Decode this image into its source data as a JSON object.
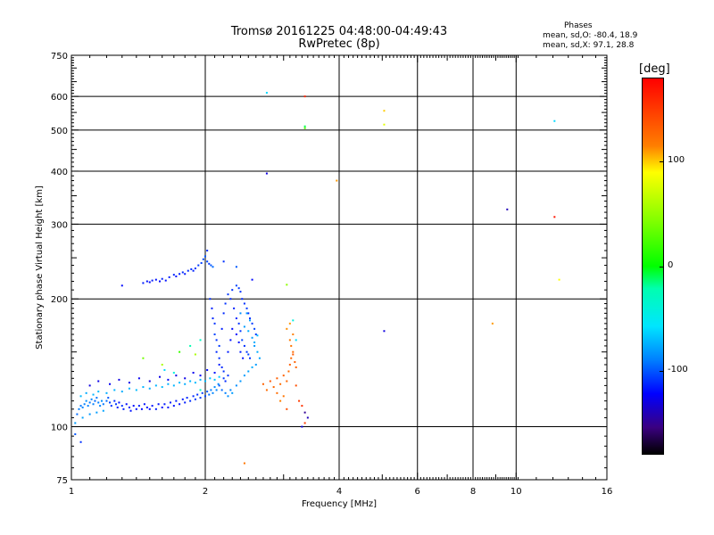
{
  "chart_data": {
    "type": "scatter",
    "title": "Tromsø 20161225 04:48:00-04:49:43",
    "subtitle": "RwPretec (8p)",
    "phases": {
      "title": "Phases",
      "o_line": "mean, sd,O: -80.4, 18.9",
      "x_line": "mean, sd,X:  97.1, 28.8"
    },
    "xlabel": "Frequency [MHz]",
    "ylabel": "Stationary phase Virtual Height [km]",
    "x_scale": "log",
    "y_scale": "log",
    "xlim": [
      1,
      16
    ],
    "ylim": [
      75,
      750
    ],
    "x_ticks": [
      {
        "value": 1,
        "label": "1"
      },
      {
        "value": 2,
        "label": "2"
      },
      {
        "value": 4,
        "label": "4"
      },
      {
        "value": 6,
        "label": "6"
      },
      {
        "value": 8,
        "label": "8"
      },
      {
        "value": 10,
        "label": "10"
      },
      {
        "value": 16,
        "label": "16"
      }
    ],
    "y_ticks": [
      {
        "value": 75,
        "label": "75"
      },
      {
        "value": 100,
        "label": "100"
      },
      {
        "value": 200,
        "label": "200"
      },
      {
        "value": 300,
        "label": "300"
      },
      {
        "value": 400,
        "label": "400"
      },
      {
        "value": 500,
        "label": "500"
      },
      {
        "value": 600,
        "label": "600"
      },
      {
        "value": 750,
        "label": "750"
      }
    ],
    "grid": true,
    "colorbar": {
      "label": "[deg]",
      "range": [
        -180,
        180
      ],
      "ticks": [
        {
          "value": 100,
          "label": "100"
        },
        {
          "value": 0,
          "label": "0"
        },
        {
          "value": -100,
          "label": "-100"
        }
      ]
    },
    "points": [
      [
        1.03,
        107,
        -95
      ],
      [
        1.04,
        110,
        -90
      ],
      [
        1.05,
        112,
        -92
      ],
      [
        1.06,
        111,
        -88
      ],
      [
        1.07,
        113,
        -90
      ],
      [
        1.08,
        115,
        -85
      ],
      [
        1.09,
        112,
        -90
      ],
      [
        1.1,
        114,
        -92
      ],
      [
        1.11,
        116,
        -88
      ],
      [
        1.12,
        113,
        -90
      ],
      [
        1.13,
        115,
        -95
      ],
      [
        1.14,
        117,
        -92
      ],
      [
        1.15,
        114,
        -90
      ],
      [
        1.16,
        112,
        -88
      ],
      [
        1.17,
        115,
        -85
      ],
      [
        1.18,
        113,
        -92
      ],
      [
        1.2,
        115,
        -95
      ],
      [
        1.21,
        117,
        -100
      ],
      [
        1.22,
        114,
        -105
      ],
      [
        1.23,
        112,
        -110
      ],
      [
        1.25,
        115,
        -112
      ],
      [
        1.26,
        113,
        -108
      ],
      [
        1.27,
        111,
        -115
      ],
      [
        1.28,
        114,
        -118
      ],
      [
        1.3,
        112,
        -110
      ],
      [
        1.31,
        110,
        -115
      ],
      [
        1.33,
        113,
        -120
      ],
      [
        1.35,
        111,
        -115
      ],
      [
        1.36,
        109,
        -118
      ],
      [
        1.38,
        112,
        -120
      ],
      [
        1.4,
        110,
        -118
      ],
      [
        1.42,
        112,
        -115
      ],
      [
        1.44,
        110,
        -120
      ],
      [
        1.46,
        113,
        -118
      ],
      [
        1.48,
        111,
        -116
      ],
      [
        1.5,
        110,
        -120
      ],
      [
        1.52,
        112,
        -118
      ],
      [
        1.55,
        110,
        -115
      ],
      [
        1.57,
        113,
        -118
      ],
      [
        1.6,
        111,
        -120
      ],
      [
        1.62,
        113,
        -116
      ],
      [
        1.65,
        111,
        -118
      ],
      [
        1.67,
        114,
        -115
      ],
      [
        1.7,
        112,
        -118
      ],
      [
        1.72,
        115,
        -115
      ],
      [
        1.75,
        113,
        -118
      ],
      [
        1.78,
        116,
        -116
      ],
      [
        1.8,
        114,
        -115
      ],
      [
        1.82,
        117,
        -112
      ],
      [
        1.85,
        115,
        -110
      ],
      [
        1.88,
        118,
        -112
      ],
      [
        1.9,
        116,
        -108
      ],
      [
        1.92,
        119,
        -110
      ],
      [
        1.95,
        117,
        -108
      ],
      [
        1.97,
        120,
        -106
      ],
      [
        2.0,
        118,
        -104
      ],
      [
        2.02,
        121,
        -100
      ],
      [
        2.04,
        119,
        -95
      ],
      [
        2.06,
        122,
        -90
      ],
      [
        2.08,
        120,
        -88
      ],
      [
        2.1,
        124,
        -85
      ],
      [
        2.12,
        122,
        -88
      ],
      [
        2.14,
        126,
        -85
      ],
      [
        1.05,
        118,
        -70
      ],
      [
        1.08,
        120,
        -75
      ],
      [
        1.12,
        119,
        -72
      ],
      [
        1.15,
        121,
        -70
      ],
      [
        1.2,
        120,
        -74
      ],
      [
        1.25,
        122,
        -72
      ],
      [
        1.3,
        121,
        -75
      ],
      [
        1.35,
        123,
        -73
      ],
      [
        1.4,
        122,
        -70
      ],
      [
        1.45,
        124,
        -72
      ],
      [
        1.5,
        123,
        -75
      ],
      [
        1.55,
        125,
        -72
      ],
      [
        1.6,
        124,
        -70
      ],
      [
        1.65,
        126,
        -74
      ],
      [
        1.7,
        125,
        -72
      ],
      [
        1.75,
        127,
        -70
      ],
      [
        1.8,
        126,
        -75
      ],
      [
        1.85,
        128,
        -72
      ],
      [
        1.9,
        127,
        -70
      ],
      [
        1.95,
        129,
        -72
      ],
      [
        2.0,
        128,
        -70
      ],
      [
        2.05,
        130,
        -68
      ],
      [
        2.1,
        129,
        -66
      ],
      [
        2.15,
        131,
        -65
      ],
      [
        1.1,
        125,
        -130
      ],
      [
        1.15,
        128,
        -128
      ],
      [
        1.22,
        126,
        -125
      ],
      [
        1.28,
        129,
        -130
      ],
      [
        1.35,
        127,
        -128
      ],
      [
        1.42,
        130,
        -125
      ],
      [
        1.5,
        128,
        -130
      ],
      [
        1.58,
        131,
        -128
      ],
      [
        1.65,
        129,
        -125
      ],
      [
        1.72,
        132,
        -130
      ],
      [
        1.8,
        130,
        -128
      ],
      [
        1.88,
        134,
        -126
      ],
      [
        1.95,
        132,
        -124
      ],
      [
        2.02,
        136,
        -120
      ],
      [
        2.1,
        134,
        -118
      ],
      [
        1.02,
        102,
        -80
      ],
      [
        1.06,
        105,
        -78
      ],
      [
        1.1,
        107,
        -82
      ],
      [
        1.14,
        108,
        -80
      ],
      [
        1.18,
        109,
        -78
      ],
      [
        1.45,
        145,
        40
      ],
      [
        1.6,
        140,
        60
      ],
      [
        1.75,
        150,
        20
      ],
      [
        1.85,
        155,
        -20
      ],
      [
        1.9,
        148,
        60
      ],
      [
        1.95,
        160,
        -30
      ],
      [
        1.7,
        134,
        -40
      ],
      [
        1.62,
        136,
        -60
      ],
      [
        1.3,
        215,
        -120
      ],
      [
        1.45,
        218,
        -115
      ],
      [
        1.48,
        220,
        -118
      ],
      [
        1.5,
        219,
        -120
      ],
      [
        1.52,
        221,
        -116
      ],
      [
        1.55,
        222,
        -118
      ],
      [
        1.58,
        220,
        -120
      ],
      [
        1.6,
        223,
        -115
      ],
      [
        1.63,
        221,
        -118
      ],
      [
        1.66,
        225,
        -116
      ],
      [
        1.7,
        228,
        -114
      ],
      [
        1.72,
        226,
        -118
      ],
      [
        1.75,
        229,
        -115
      ],
      [
        1.78,
        231,
        -112
      ],
      [
        1.8,
        229,
        -116
      ],
      [
        1.83,
        233,
        -112
      ],
      [
        1.86,
        235,
        -110
      ],
      [
        1.88,
        233,
        -114
      ],
      [
        1.9,
        236,
        -110
      ],
      [
        1.93,
        240,
        -108
      ],
      [
        1.96,
        243,
        -106
      ],
      [
        1.98,
        248,
        -104
      ],
      [
        2.0,
        252,
        -100
      ],
      [
        2.02,
        245,
        -105
      ],
      [
        2.04,
        242,
        -108
      ],
      [
        2.06,
        240,
        -100
      ],
      [
        2.08,
        238,
        -95
      ],
      [
        2.02,
        260,
        -110
      ],
      [
        2.2,
        245,
        -110
      ],
      [
        2.35,
        238,
        -100
      ],
      [
        2.55,
        222,
        -120
      ],
      [
        3.05,
        216,
        50
      ],
      [
        2.05,
        200,
        -110
      ],
      [
        2.07,
        190,
        -115
      ],
      [
        2.08,
        180,
        -112
      ],
      [
        2.1,
        175,
        -110
      ],
      [
        2.1,
        165,
        -105
      ],
      [
        2.12,
        160,
        -110
      ],
      [
        2.15,
        155,
        -108
      ],
      [
        2.12,
        150,
        -112
      ],
      [
        2.15,
        145,
        -110
      ],
      [
        2.15,
        140,
        -115
      ],
      [
        2.18,
        138,
        -112
      ],
      [
        2.2,
        135,
        -110
      ],
      [
        2.2,
        130,
        -108
      ],
      [
        2.22,
        128,
        -112
      ],
      [
        2.25,
        132,
        -110
      ],
      [
        2.18,
        170,
        -115
      ],
      [
        2.2,
        185,
        -112
      ],
      [
        2.22,
        195,
        -110
      ],
      [
        2.25,
        205,
        -108
      ],
      [
        2.28,
        200,
        -112
      ],
      [
        2.3,
        210,
        -110
      ],
      [
        2.35,
        215,
        -105
      ],
      [
        2.38,
        212,
        -108
      ],
      [
        2.4,
        208,
        -110
      ],
      [
        2.42,
        200,
        -112
      ],
      [
        2.45,
        195,
        -110
      ],
      [
        2.48,
        190,
        -108
      ],
      [
        2.5,
        185,
        -112
      ],
      [
        2.52,
        180,
        -110
      ],
      [
        2.55,
        175,
        -108
      ],
      [
        2.58,
        170,
        -105
      ],
      [
        2.6,
        165,
        -108
      ],
      [
        2.32,
        190,
        -115
      ],
      [
        2.35,
        180,
        -112
      ],
      [
        2.38,
        175,
        -110
      ],
      [
        2.4,
        168,
        -108
      ],
      [
        2.42,
        160,
        -105
      ],
      [
        2.45,
        155,
        -110
      ],
      [
        2.48,
        150,
        -108
      ],
      [
        2.5,
        148,
        -105
      ],
      [
        2.52,
        145,
        -110
      ],
      [
        2.35,
        165,
        -120
      ],
      [
        2.38,
        158,
        -118
      ],
      [
        2.4,
        150,
        -115
      ],
      [
        2.43,
        145,
        -118
      ],
      [
        2.3,
        170,
        -120
      ],
      [
        2.28,
        160,
        -118
      ],
      [
        2.25,
        150,
        -115
      ],
      [
        2.45,
        172,
        -80
      ],
      [
        2.5,
        168,
        -75
      ],
      [
        2.55,
        162,
        -80
      ],
      [
        2.58,
        158,
        -75
      ],
      [
        2.62,
        164,
        -70
      ],
      [
        2.48,
        185,
        -80
      ],
      [
        2.52,
        178,
        -78
      ],
      [
        2.4,
        185,
        -85
      ],
      [
        2.15,
        125,
        -100
      ],
      [
        2.18,
        122,
        -95
      ],
      [
        2.22,
        120,
        -90
      ],
      [
        2.25,
        118,
        -85
      ],
      [
        2.28,
        122,
        -88
      ],
      [
        2.3,
        120,
        -80
      ],
      [
        2.35,
        125,
        -85
      ],
      [
        2.4,
        128,
        -82
      ],
      [
        2.45,
        132,
        -80
      ],
      [
        2.5,
        135,
        -78
      ],
      [
        2.55,
        138,
        -75
      ],
      [
        2.6,
        140,
        -80
      ],
      [
        2.65,
        145,
        -78
      ],
      [
        2.62,
        150,
        -75
      ],
      [
        2.58,
        155,
        -82
      ],
      [
        2.7,
        126,
        130
      ],
      [
        2.75,
        122,
        125
      ],
      [
        2.8,
        128,
        135
      ],
      [
        2.85,
        124,
        128
      ],
      [
        2.9,
        130,
        132
      ],
      [
        2.95,
        126,
        125
      ],
      [
        3.0,
        132,
        130
      ],
      [
        3.05,
        128,
        128
      ],
      [
        3.08,
        135,
        125
      ],
      [
        3.1,
        140,
        130
      ],
      [
        3.12,
        145,
        128
      ],
      [
        3.15,
        150,
        125
      ],
      [
        3.12,
        155,
        120
      ],
      [
        3.1,
        160,
        118
      ],
      [
        3.15,
        165,
        115
      ],
      [
        3.05,
        170,
        112
      ],
      [
        3.1,
        175,
        110
      ],
      [
        3.15,
        148,
        135
      ],
      [
        3.18,
        142,
        130
      ],
      [
        3.2,
        138,
        128
      ],
      [
        3.0,
        118,
        120
      ],
      [
        2.9,
        120,
        125
      ],
      [
        2.95,
        115,
        115
      ],
      [
        3.05,
        110,
        140
      ],
      [
        3.2,
        125,
        140
      ],
      [
        3.25,
        115,
        150
      ],
      [
        3.3,
        112,
        155
      ],
      [
        3.35,
        108,
        -150
      ],
      [
        3.4,
        105,
        -140
      ],
      [
        3.3,
        100,
        -130
      ],
      [
        3.35,
        102,
        150
      ],
      [
        1.02,
        96,
        -100
      ],
      [
        1.05,
        92,
        -110
      ],
      [
        2.45,
        82,
        120
      ],
      [
        2.75,
        612,
        -60
      ],
      [
        2.75,
        395,
        -130
      ],
      [
        3.35,
        600,
        160
      ],
      [
        3.35,
        510,
        -10
      ],
      [
        3.35,
        505,
        30
      ],
      [
        3.95,
        380,
        110
      ],
      [
        5.05,
        555,
        100
      ],
      [
        5.05,
        515,
        80
      ],
      [
        5.05,
        168,
        -130
      ],
      [
        8.85,
        175,
        110
      ],
      [
        9.55,
        325,
        -140
      ],
      [
        12.2,
        525,
        -60
      ],
      [
        12.2,
        312,
        170
      ],
      [
        12.5,
        222,
        90
      ],
      [
        3.15,
        178,
        -40
      ],
      [
        3.2,
        160,
        -60
      ],
      [
        1.95,
        122,
        -30
      ]
    ]
  }
}
